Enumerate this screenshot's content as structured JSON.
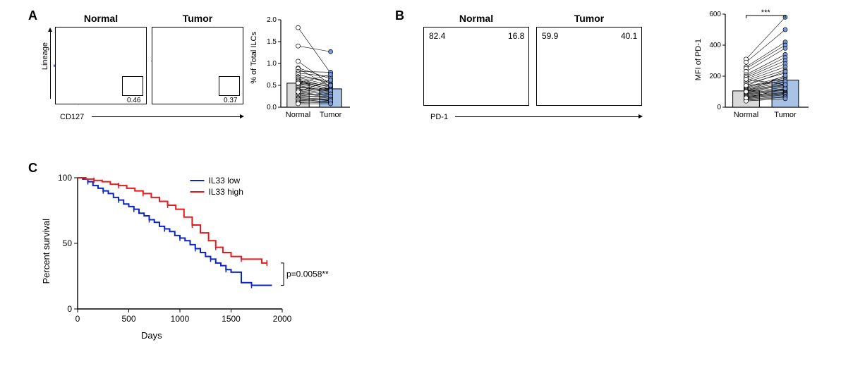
{
  "panelA": {
    "label": "A",
    "facs": {
      "normal": {
        "title": "Normal",
        "gate_value": "0.46"
      },
      "tumor": {
        "title": "Tumor",
        "gate_value": "0.37"
      },
      "x_axis": "CD127",
      "y_axis": "Lineage"
    },
    "bar": {
      "y_axis": "% of Total ILCs",
      "ylim": [
        0,
        2.0
      ],
      "ytick_step": 0.5,
      "categories": [
        "Normal",
        "Tumor"
      ],
      "bar_values": [
        0.55,
        0.42
      ],
      "bar_colors": [
        "#d9d9d9",
        "#a8c3e6"
      ],
      "pairs": [
        [
          1.82,
          0.78
        ],
        [
          1.4,
          1.27
        ],
        [
          1.05,
          0.52
        ],
        [
          0.9,
          0.65
        ],
        [
          0.88,
          0.48
        ],
        [
          0.82,
          0.8
        ],
        [
          0.78,
          0.7
        ],
        [
          0.75,
          0.55
        ],
        [
          0.7,
          0.6
        ],
        [
          0.68,
          0.5
        ],
        [
          0.65,
          0.45
        ],
        [
          0.62,
          0.4
        ],
        [
          0.6,
          0.48
        ],
        [
          0.58,
          0.42
        ],
        [
          0.55,
          0.38
        ],
        [
          0.52,
          0.5
        ],
        [
          0.5,
          0.35
        ],
        [
          0.48,
          0.32
        ],
        [
          0.45,
          0.4
        ],
        [
          0.42,
          0.3
        ],
        [
          0.4,
          0.38
        ],
        [
          0.38,
          0.28
        ],
        [
          0.35,
          0.25
        ],
        [
          0.33,
          0.22
        ],
        [
          0.3,
          0.3
        ],
        [
          0.28,
          0.2
        ],
        [
          0.25,
          0.25
        ],
        [
          0.22,
          0.18
        ],
        [
          0.2,
          0.15
        ],
        [
          0.18,
          0.12
        ],
        [
          0.15,
          0.18
        ],
        [
          0.12,
          0.1
        ],
        [
          0.1,
          0.15
        ],
        [
          0.08,
          0.08
        ],
        [
          0.35,
          0.62
        ],
        [
          0.55,
          0.75
        ]
      ],
      "point_color_normal": "#ffffff",
      "point_color_tumor": "#7a99d6"
    }
  },
  "panelB": {
    "label": "B",
    "hist": {
      "normal": {
        "title": "Normal",
        "left_pct": "82.4",
        "right_pct": "16.8"
      },
      "tumor": {
        "title": "Tumor",
        "left_pct": "59.9",
        "right_pct": "40.1"
      },
      "x_axis": "PD-1",
      "fill": "#b8d4ea"
    },
    "bar": {
      "y_axis": "MFI of PD-1",
      "ylim": [
        0,
        600
      ],
      "ytick_step": 200,
      "categories": [
        "Normal",
        "Tumor"
      ],
      "bar_values": [
        105,
        175
      ],
      "bar_colors": [
        "#d9d9d9",
        "#a8c3e6"
      ],
      "sig": "***",
      "pairs": [
        [
          310,
          580
        ],
        [
          290,
          500
        ],
        [
          260,
          420
        ],
        [
          250,
          400
        ],
        [
          230,
          380
        ],
        [
          210,
          340
        ],
        [
          200,
          320
        ],
        [
          190,
          300
        ],
        [
          180,
          280
        ],
        [
          170,
          260
        ],
        [
          160,
          240
        ],
        [
          150,
          220
        ],
        [
          140,
          230
        ],
        [
          130,
          200
        ],
        [
          125,
          190
        ],
        [
          120,
          175
        ],
        [
          115,
          160
        ],
        [
          110,
          150
        ],
        [
          105,
          145
        ],
        [
          100,
          140
        ],
        [
          95,
          130
        ],
        [
          90,
          120
        ],
        [
          85,
          115
        ],
        [
          80,
          110
        ],
        [
          75,
          100
        ],
        [
          70,
          95
        ],
        [
          65,
          90
        ],
        [
          60,
          85
        ],
        [
          55,
          80
        ],
        [
          50,
          70
        ],
        [
          45,
          65
        ],
        [
          40,
          55
        ],
        [
          60,
          120
        ],
        [
          100,
          205
        ],
        [
          140,
          165
        ],
        [
          180,
          145
        ]
      ],
      "point_color_normal": "#ffffff",
      "point_color_tumor": "#7a99d6"
    }
  },
  "panelC": {
    "label": "C",
    "x_axis": "Days",
    "y_axis": "Percent survival",
    "xlim": [
      0,
      2000
    ],
    "xtick_step": 500,
    "ylim": [
      0,
      100
    ],
    "ytick_step": 50,
    "pvalue": "p=0.0058**",
    "legend": {
      "low": "IL33 low",
      "high": "IL33 high"
    },
    "colors": {
      "low": "#0b24c4",
      "high": "#e41a1c"
    },
    "curve_low": [
      [
        0,
        100
      ],
      [
        50,
        99
      ],
      [
        100,
        97
      ],
      [
        150,
        94
      ],
      [
        200,
        92
      ],
      [
        250,
        90
      ],
      [
        300,
        88
      ],
      [
        350,
        85
      ],
      [
        400,
        83
      ],
      [
        450,
        80
      ],
      [
        500,
        78
      ],
      [
        550,
        76
      ],
      [
        600,
        73
      ],
      [
        650,
        71
      ],
      [
        700,
        68
      ],
      [
        750,
        66
      ],
      [
        800,
        63
      ],
      [
        850,
        61
      ],
      [
        900,
        59
      ],
      [
        950,
        56
      ],
      [
        1000,
        54
      ],
      [
        1050,
        52
      ],
      [
        1100,
        49
      ],
      [
        1150,
        46
      ],
      [
        1200,
        43
      ],
      [
        1250,
        40
      ],
      [
        1300,
        38
      ],
      [
        1350,
        35
      ],
      [
        1400,
        33
      ],
      [
        1450,
        30
      ],
      [
        1500,
        28
      ],
      [
        1600,
        20
      ],
      [
        1700,
        18
      ],
      [
        1800,
        18
      ],
      [
        1900,
        18
      ]
    ],
    "curve_high": [
      [
        0,
        100
      ],
      [
        80,
        99
      ],
      [
        160,
        98
      ],
      [
        240,
        97
      ],
      [
        320,
        95
      ],
      [
        400,
        94
      ],
      [
        480,
        92
      ],
      [
        560,
        90
      ],
      [
        640,
        88
      ],
      [
        720,
        85
      ],
      [
        800,
        82
      ],
      [
        880,
        79
      ],
      [
        960,
        76
      ],
      [
        1040,
        70
      ],
      [
        1120,
        64
      ],
      [
        1200,
        58
      ],
      [
        1280,
        52
      ],
      [
        1350,
        47
      ],
      [
        1420,
        43
      ],
      [
        1500,
        40
      ],
      [
        1600,
        38
      ],
      [
        1700,
        38
      ],
      [
        1800,
        35
      ],
      [
        1850,
        35
      ]
    ]
  }
}
